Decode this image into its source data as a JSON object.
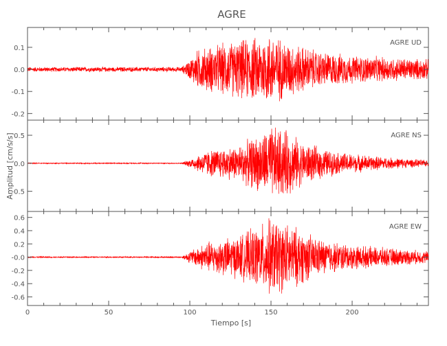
{
  "chart_data": {
    "type": "line",
    "title": "AGRE",
    "xlabel": "Tiempo [s]",
    "ylabel": "Amplitud [cm/s/s]",
    "xlim": [
      0,
      247
    ],
    "xticks": [
      0,
      50,
      100,
      150,
      200
    ],
    "x_minor_step": 10,
    "grid": false,
    "line_color": "#ff0000",
    "panels": [
      {
        "label": "AGRE   UD",
        "ylim": [
          -0.23,
          0.19
        ],
        "yticks": [
          0.1,
          0.0,
          -0.1,
          -0.2
        ],
        "ytick_labels": [
          "0.1",
          "0.0",
          "-0.1",
          "-0.2"
        ],
        "noise_level_before_onset": 0.012,
        "onset_time": 98,
        "peak_envelope": [
          [
            0,
            0.012
          ],
          [
            95,
            0.012
          ],
          [
            100,
            0.05
          ],
          [
            105,
            0.1
          ],
          [
            120,
            0.13
          ],
          [
            140,
            0.16
          ],
          [
            150,
            0.18
          ],
          [
            160,
            0.14
          ],
          [
            180,
            0.09
          ],
          [
            200,
            0.07
          ],
          [
            247,
            0.05
          ]
        ]
      },
      {
        "label": "AGRE   NS",
        "ylim": [
          -0.86,
          0.77
        ],
        "yticks": [
          0.5,
          0.0,
          -0.5
        ],
        "ytick_labels": [
          "0.5",
          "0.0",
          "-0.5"
        ],
        "noise_level_before_onset": 0.01,
        "onset_time": 98,
        "peak_envelope": [
          [
            0,
            0.01
          ],
          [
            95,
            0.01
          ],
          [
            100,
            0.08
          ],
          [
            110,
            0.25
          ],
          [
            130,
            0.35
          ],
          [
            145,
            0.6
          ],
          [
            150,
            0.72
          ],
          [
            160,
            0.65
          ],
          [
            170,
            0.4
          ],
          [
            190,
            0.22
          ],
          [
            220,
            0.12
          ],
          [
            247,
            0.06
          ]
        ]
      },
      {
        "label": "AGRE   EW",
        "ylim": [
          -0.73,
          0.69
        ],
        "yticks": [
          0.6,
          0.4,
          0.2,
          0.0,
          -0.2,
          -0.4,
          -0.6
        ],
        "ytick_labels": [
          "0.6",
          "0.4",
          "0.2",
          "-0.0",
          "-0.2",
          "-0.4",
          "-0.6"
        ],
        "noise_level_before_onset": 0.01,
        "onset_time": 98,
        "peak_envelope": [
          [
            0,
            0.01
          ],
          [
            95,
            0.01
          ],
          [
            100,
            0.1
          ],
          [
            110,
            0.25
          ],
          [
            130,
            0.35
          ],
          [
            145,
            0.55
          ],
          [
            150,
            0.65
          ],
          [
            165,
            0.5
          ],
          [
            180,
            0.3
          ],
          [
            200,
            0.2
          ],
          [
            247,
            0.1
          ]
        ]
      }
    ]
  }
}
